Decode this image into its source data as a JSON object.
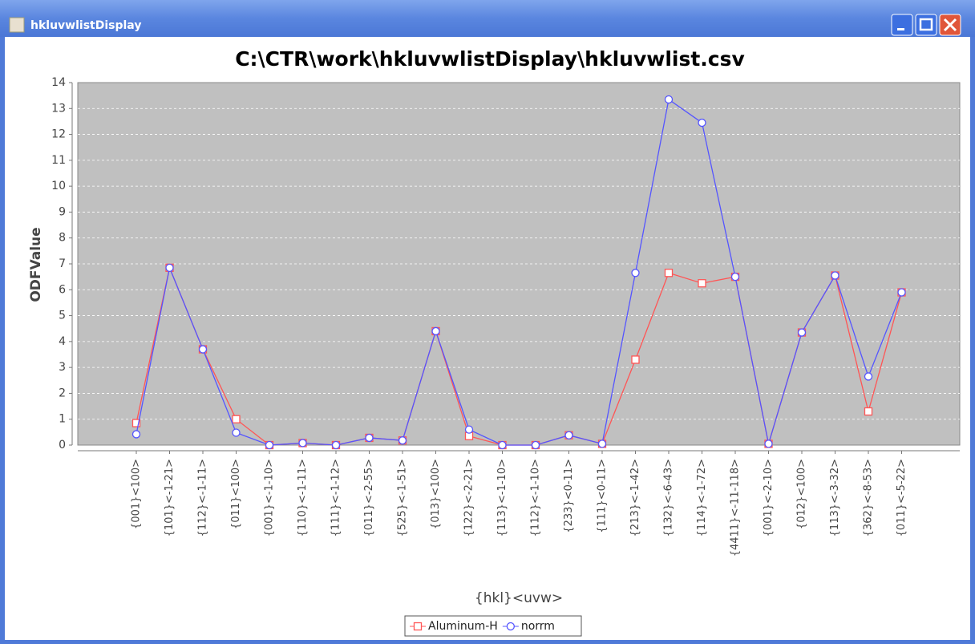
{
  "window": {
    "title": "hkluvwlistDisplay"
  },
  "chart_data": {
    "type": "line",
    "title": "C:\\CTR\\work\\hkluvwlistDisplay\\hkluvwlist.csv",
    "x_label": "{hkl}<uvw>",
    "y_label": "ODFValue",
    "categories": [
      "{001}<100>",
      "{101}<-1-21>",
      "{112}<-1-11>",
      "{011}<100>",
      "{001}<-1-10>",
      "{110}<-1-11>",
      "{111}<-1-12>",
      "{011}<-2-55>",
      "{525}<-1-51>",
      "{013}<100>",
      "{122}<-2-21>",
      "{113}<-1-10>",
      "{112}<-1-10>",
      "{233}<0-11>",
      "{111}<0-11>",
      "{213}<-1-42>",
      "{132}<-6-43>",
      "{114}<-1-72>",
      "{4411}<-11-118>",
      "{001}<-2-10>",
      "{012}<100>",
      "{113}<-3-32>",
      "{362}<-8-53>",
      "{011}<-5-22>"
    ],
    "series": [
      {
        "name": "Aluminum-H",
        "color": "#ff5555",
        "marker": "square",
        "values": [
          0.85,
          6.85,
          3.7,
          1.0,
          0.0,
          0.08,
          0.0,
          0.28,
          0.18,
          4.4,
          0.35,
          0.0,
          0.0,
          0.38,
          0.05,
          3.3,
          6.65,
          6.25,
          6.5,
          0.05,
          4.35,
          6.55,
          1.3,
          5.9
        ]
      },
      {
        "name": "norrm",
        "color": "#5555ff",
        "marker": "circle",
        "values": [
          0.42,
          6.85,
          3.7,
          0.48,
          0.0,
          0.08,
          0.0,
          0.28,
          0.18,
          4.4,
          0.6,
          0.0,
          0.0,
          0.38,
          0.05,
          6.65,
          13.35,
          12.45,
          6.5,
          0.05,
          4.35,
          6.55,
          2.65,
          5.9
        ]
      }
    ],
    "ylim": [
      0,
      14
    ],
    "yticks": [
      0,
      1,
      2,
      3,
      4,
      5,
      6,
      7,
      8,
      9,
      10,
      11,
      12,
      13,
      14
    ],
    "grid": true,
    "legend": "bottom"
  }
}
